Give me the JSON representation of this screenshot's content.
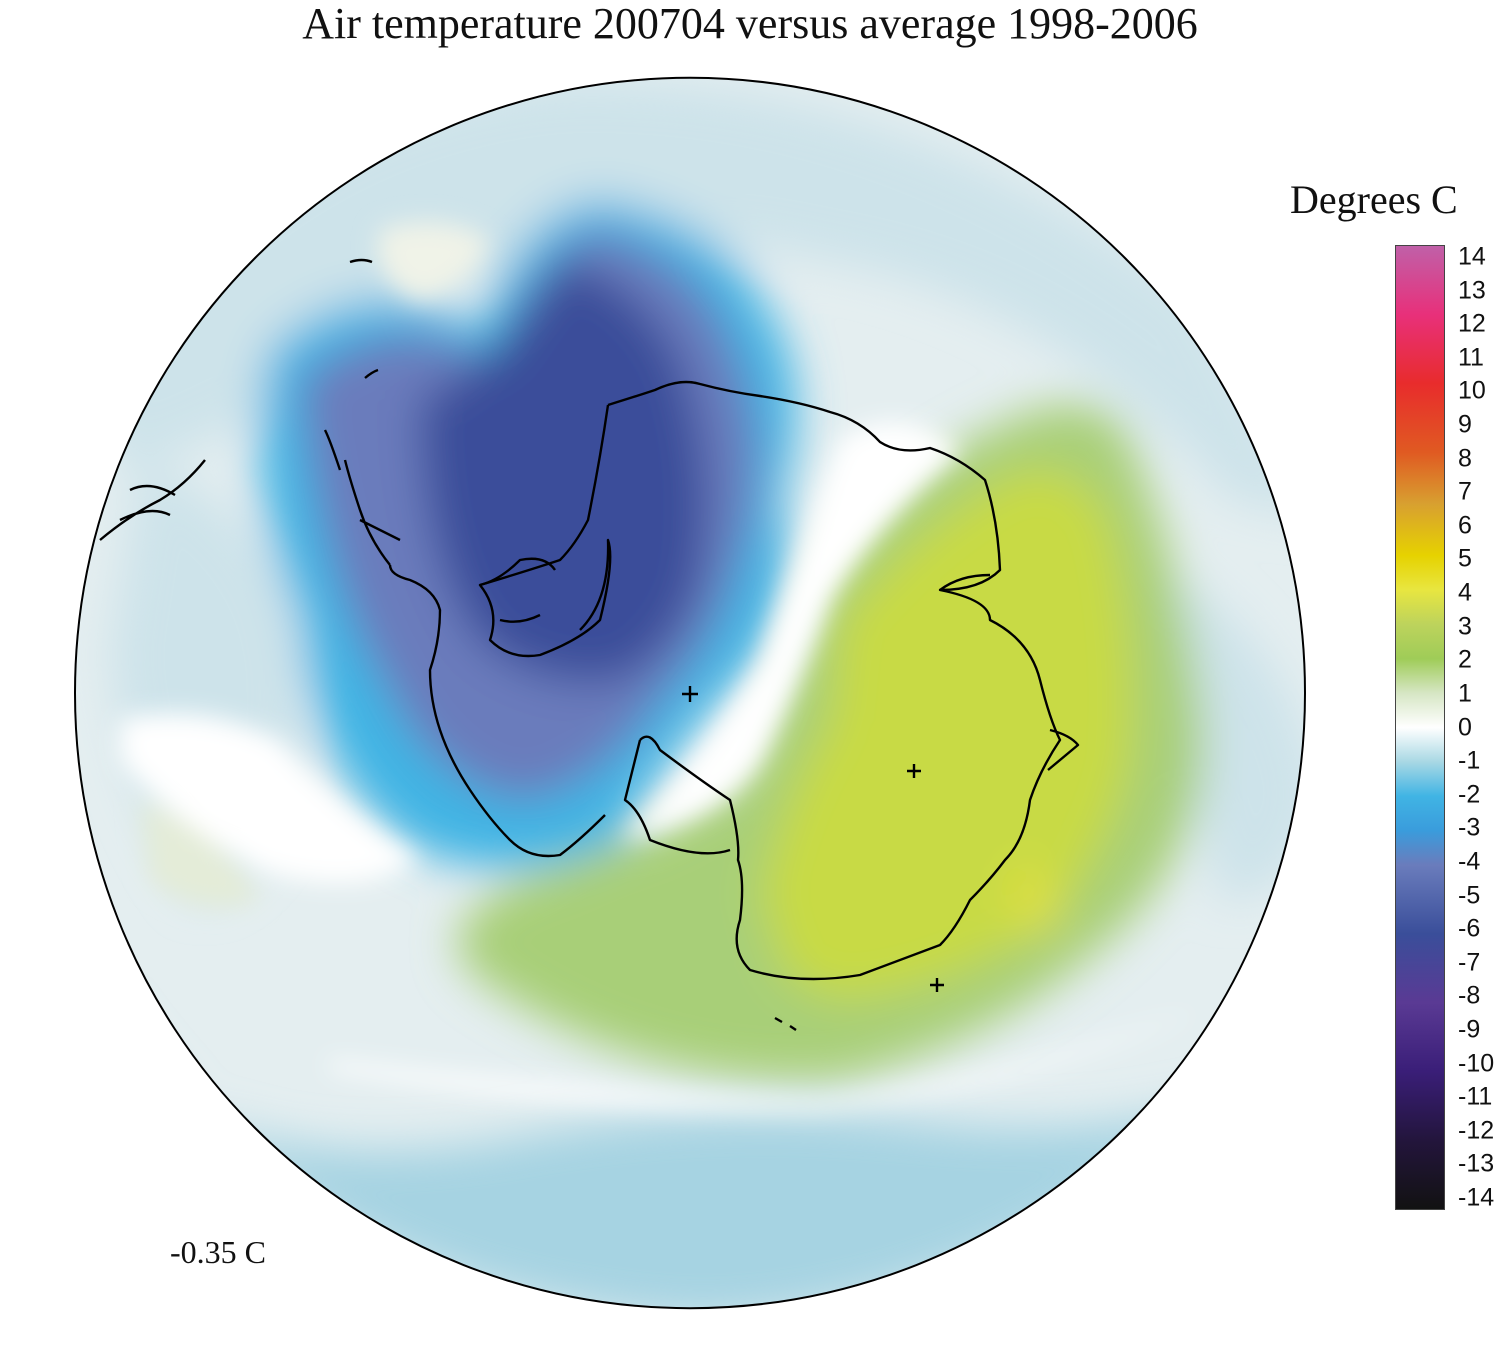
{
  "title": "Air temperature 200704 versus average 1998-2006",
  "legend": {
    "title": "Degrees C",
    "ticks": [
      "14",
      "13",
      "12",
      "11",
      "10",
      "9",
      "8",
      "7",
      "6",
      "5",
      "4",
      "3",
      "2",
      "1",
      "0",
      "-1",
      "-2",
      "-3",
      "-4",
      "-5",
      "-6",
      "-7",
      "-8",
      "-9",
      "-10",
      "-11",
      "-12",
      "-13",
      "-14"
    ],
    "min": -14,
    "max": 14,
    "colors": [
      {
        "v": 14,
        "c": "#c060a8"
      },
      {
        "v": 12,
        "c": "#e8307a"
      },
      {
        "v": 10,
        "c": "#e82c2c"
      },
      {
        "v": 8,
        "c": "#e05a22"
      },
      {
        "v": 6.5,
        "c": "#d8a030"
      },
      {
        "v": 5,
        "c": "#e6d200"
      },
      {
        "v": 4,
        "c": "#e8e640"
      },
      {
        "v": 3,
        "c": "#bdd35c"
      },
      {
        "v": 2,
        "c": "#9fcc58"
      },
      {
        "v": 1,
        "c": "#d6e6c4"
      },
      {
        "v": 0,
        "c": "#ffffff"
      },
      {
        "v": -1,
        "c": "#a8d8e4"
      },
      {
        "v": -2,
        "c": "#40b4e4"
      },
      {
        "v": -3,
        "c": "#3a9cdc"
      },
      {
        "v": -4,
        "c": "#6a7cbc"
      },
      {
        "v": -6,
        "c": "#3a4e9a"
      },
      {
        "v": -8,
        "c": "#5a3a94"
      },
      {
        "v": -10,
        "c": "#3a1e78"
      },
      {
        "v": -12,
        "c": "#23153c"
      },
      {
        "v": -14,
        "c": "#121212"
      }
    ]
  },
  "mean_label": "-0.35 C",
  "map": {
    "projection": "south polar stereographic",
    "field_colors": {
      "ocean_neutral": "#e4eef0",
      "light_blue": "#cde3ea",
      "blue": "#a6d3e2",
      "cyan_blue": "#40b4e4",
      "slate": "#6a7cbc",
      "deep_blue": "#3a4e9a",
      "light_green": "#cfe0bc",
      "green": "#a8cf78",
      "yellow_green": "#c8da44"
    }
  }
}
